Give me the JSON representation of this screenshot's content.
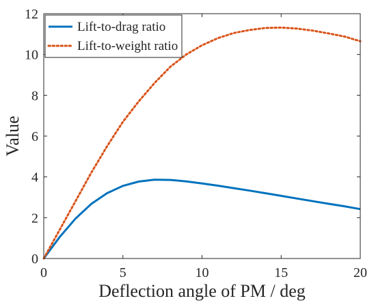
{
  "chart_data": {
    "type": "line",
    "xlabel": "Deflection angle of PM / deg",
    "ylabel": "Value",
    "xlim": [
      0,
      20
    ],
    "ylim": [
      0,
      12
    ],
    "xticks": [
      "0",
      "5",
      "10",
      "15",
      "20"
    ],
    "yticks": [
      "0",
      "2",
      "4",
      "6",
      "8",
      "10",
      "12"
    ],
    "grid": false,
    "legend_position": "top-left",
    "series": [
      {
        "name": "Lift-to-drag ratio",
        "style": "solid",
        "color": "#0072BD",
        "x": [
          0,
          1,
          2,
          3,
          4,
          5,
          6,
          7,
          8,
          9,
          10,
          11,
          12,
          13,
          14,
          15,
          16,
          17,
          18,
          19,
          20
        ],
        "y": [
          0,
          1.05,
          1.95,
          2.67,
          3.2,
          3.56,
          3.77,
          3.86,
          3.85,
          3.78,
          3.68,
          3.57,
          3.45,
          3.33,
          3.2,
          3.07,
          2.94,
          2.81,
          2.68,
          2.56,
          2.42
        ]
      },
      {
        "name": "Lift-to-weight ratio",
        "style": "dotted",
        "color": "#D95319",
        "x": [
          0,
          1,
          2,
          3,
          4,
          5,
          6,
          7,
          8,
          9,
          10,
          11,
          12,
          13,
          14,
          15,
          16,
          17,
          18,
          19,
          20
        ],
        "y": [
          0,
          1.4,
          2.8,
          4.2,
          5.5,
          6.7,
          7.7,
          8.6,
          9.4,
          10.0,
          10.45,
          10.8,
          11.05,
          11.2,
          11.3,
          11.32,
          11.27,
          11.17,
          11.03,
          10.88,
          10.65
        ]
      }
    ]
  }
}
